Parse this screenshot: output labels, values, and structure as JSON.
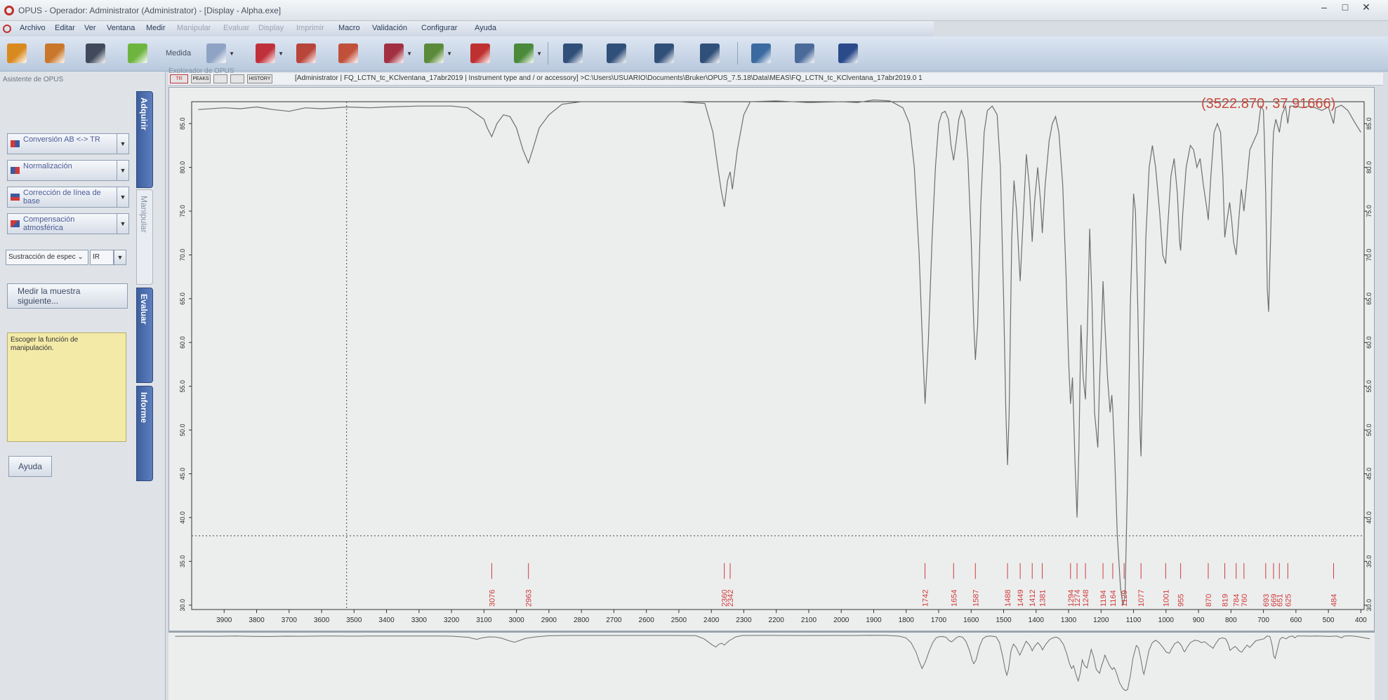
{
  "window": {
    "title": "OPUS - Operador: Administrator  (Administrator) - [Display - Alpha.exe]",
    "buttons": {
      "minimize": "–",
      "maximize": "□",
      "close": "✕"
    }
  },
  "menu": [
    {
      "label": "Archivo",
      "enabled": true
    },
    {
      "label": "Editar",
      "enabled": true
    },
    {
      "label": "Ver",
      "enabled": true
    },
    {
      "label": "Ventana",
      "enabled": true
    },
    {
      "label": "Medir",
      "enabled": true
    },
    {
      "label": "Manipular",
      "enabled": false
    },
    {
      "label": "Evaluar",
      "enabled": false
    },
    {
      "label": "Display",
      "enabled": false
    },
    {
      "label": "Imprimir",
      "enabled": false
    },
    {
      "label": "Macro",
      "enabled": true
    },
    {
      "label": "Validación",
      "enabled": true
    },
    {
      "label": "Configurar",
      "enabled": true
    },
    {
      "label": "Ayuda",
      "enabled": true
    }
  ],
  "toolbar": {
    "medida_label": "Medida",
    "buttons": [
      {
        "icon": "open-folder-icon",
        "color": "#d98a1f"
      },
      {
        "icon": "open-folder-alt-icon",
        "color": "#c9772a"
      },
      {
        "icon": "save-disk-icon",
        "color": "#404a5a"
      },
      {
        "icon": "measure-bulb-icon",
        "color": "#6eb53f"
      },
      {
        "icon": "measure-spectrum-icon",
        "color": "#8fa3c4"
      },
      {
        "icon": "peak-pick-icon",
        "color": "#c0303a"
      },
      {
        "icon": "check-doc-icon",
        "color": "#b8443a"
      },
      {
        "icon": "add-doc-icon",
        "color": "#c0503a"
      },
      {
        "icon": "zoom-icon",
        "color": "#a23042"
      },
      {
        "icon": "spectrum-check-icon",
        "color": "#5a8a3a"
      },
      {
        "icon": "add-report-icon",
        "color": "#bf3030"
      },
      {
        "icon": "validate-icon",
        "color": "#4a8a3a"
      },
      {
        "icon": "spectrum-window-icon",
        "color": "#30507a"
      },
      {
        "icon": "peak-window-icon",
        "color": "#30507a"
      },
      {
        "icon": "axis-arrow-icon",
        "color": "#30507a"
      },
      {
        "icon": "table-window-icon",
        "color": "#30507a"
      },
      {
        "icon": "report-check-icon",
        "color": "#3a6aa0"
      },
      {
        "icon": "print-icon",
        "color": "#4a6a9a"
      },
      {
        "icon": "tools-bag-icon",
        "color": "#2a4a8a"
      }
    ]
  },
  "assistant": {
    "header": "Asistente de OPUS",
    "functions": [
      {
        "label": "Conversión AB <-> TR",
        "icon": "ab-tr-icon"
      },
      {
        "label": "Normalización",
        "icon": "normalize-icon"
      },
      {
        "label": "Corrección de línea de base",
        "icon": "baseline-icon"
      },
      {
        "label": "Compensación atmosférica",
        "icon": "atmospheric-icon"
      }
    ],
    "subtraction_combo": "Sustracción de espec",
    "ir_combo": "IR",
    "next_sample": "Medir la muestra siguiente...",
    "hint": "Escoger la función de manipulación.",
    "help": "Ayuda"
  },
  "tabs": [
    {
      "label": "Adquirir",
      "active": false
    },
    {
      "label": "Manipular",
      "active": true
    },
    {
      "label": "Evaluar",
      "active": false
    },
    {
      "label": "Informe",
      "active": false
    }
  ],
  "explorer": {
    "label": "Explorador de OPUS",
    "mini_labels": [
      "TR",
      "PEAKS",
      "",
      "",
      "HISTORY"
    ],
    "path": "[Administrator | FQ_LCTN_tc_KClventana_17abr2019 | Instrument type and / or accessory] >C:\\Users\\USUARIO\\Documents\\Bruker\\OPUS_7.5.18\\Data\\MEAS\\FQ_LCTN_tc_KClventana_17abr2019.0  1"
  },
  "plot": {
    "coord_readout": "(3522.870, 37.91666)",
    "colors": {
      "spectrum": "#6e6e6e",
      "peak_label": "#d23a3a",
      "axis_text": "#2a2a2a",
      "readout": "#c84a3a"
    }
  },
  "chart_data": {
    "type": "line",
    "title": "",
    "xlabel": "",
    "ylabel": "",
    "xlim": [
      4000,
      390
    ],
    "x_reversed": true,
    "ylim": [
      29.5,
      87.5
    ],
    "x_ticks": [
      3900,
      3800,
      3700,
      3600,
      3500,
      3400,
      3300,
      3200,
      3100,
      3000,
      2900,
      2800,
      2700,
      2600,
      2500,
      2400,
      2300,
      2200,
      2100,
      2000,
      1900,
      1800,
      1700,
      1600,
      1500,
      1400,
      1300,
      1200,
      1100,
      1000,
      900,
      800,
      700,
      600,
      500,
      400
    ],
    "y_ticks": [
      "30.0",
      "35.0",
      "40.0",
      "45.0",
      "50.0",
      "55.0",
      "60.0",
      "65.0",
      "70.0",
      "75.0",
      "80.0",
      "85.0"
    ],
    "grid": false,
    "cursor": {
      "x": 3522.87,
      "y": 37.91666
    },
    "series": [
      {
        "points": [
          [
            3980,
            86.6
          ],
          [
            3900,
            86.8
          ],
          [
            3850,
            86.7
          ],
          [
            3800,
            86.9
          ],
          [
            3750,
            86.6
          ],
          [
            3700,
            86.4
          ],
          [
            3650,
            86.8
          ],
          [
            3600,
            86.7
          ],
          [
            3522,
            86.9
          ],
          [
            3450,
            86.8
          ],
          [
            3400,
            86.9
          ],
          [
            3300,
            87.0
          ],
          [
            3200,
            87.0
          ],
          [
            3150,
            86.8
          ],
          [
            3100,
            85.5
          ],
          [
            3090,
            84.5
          ],
          [
            3076,
            83.5
          ],
          [
            3060,
            85.0
          ],
          [
            3040,
            86.0
          ],
          [
            3020,
            85.8
          ],
          [
            3000,
            84.5
          ],
          [
            2980,
            82.0
          ],
          [
            2963,
            80.5
          ],
          [
            2950,
            82.0
          ],
          [
            2930,
            84.5
          ],
          [
            2900,
            86.0
          ],
          [
            2860,
            87.2
          ],
          [
            2800,
            87.5
          ],
          [
            2700,
            87.5
          ],
          [
            2600,
            87.5
          ],
          [
            2500,
            87.5
          ],
          [
            2420,
            87.3
          ],
          [
            2395,
            84.0
          ],
          [
            2380,
            80.0
          ],
          [
            2370,
            77.5
          ],
          [
            2360,
            75.5
          ],
          [
            2355,
            77.0
          ],
          [
            2350,
            78.5
          ],
          [
            2342,
            79.5
          ],
          [
            2335,
            77.5
          ],
          [
            2320,
            82.0
          ],
          [
            2300,
            86.0
          ],
          [
            2280,
            87.5
          ],
          [
            2200,
            87.6
          ],
          [
            2100,
            87.4
          ],
          [
            2000,
            87.5
          ],
          [
            1950,
            87.4
          ],
          [
            1900,
            87.7
          ],
          [
            1850,
            87.6
          ],
          [
            1810,
            86.8
          ],
          [
            1790,
            85.0
          ],
          [
            1775,
            80.0
          ],
          [
            1760,
            70.0
          ],
          [
            1750,
            60.0
          ],
          [
            1742,
            53.0
          ],
          [
            1732,
            60.0
          ],
          [
            1720,
            72.0
          ],
          [
            1710,
            80.0
          ],
          [
            1700,
            85.0
          ],
          [
            1690,
            86.2
          ],
          [
            1680,
            86.4
          ],
          [
            1670,
            85.5
          ],
          [
            1662,
            82.5
          ],
          [
            1654,
            80.8
          ],
          [
            1646,
            83.0
          ],
          [
            1638,
            85.5
          ],
          [
            1630,
            86.5
          ],
          [
            1620,
            85.5
          ],
          [
            1610,
            81.0
          ],
          [
            1600,
            72.0
          ],
          [
            1592,
            62.0
          ],
          [
            1587,
            58.0
          ],
          [
            1580,
            62.0
          ],
          [
            1570,
            76.0
          ],
          [
            1560,
            84.0
          ],
          [
            1550,
            86.5
          ],
          [
            1535,
            87.0
          ],
          [
            1520,
            86.0
          ],
          [
            1510,
            80.0
          ],
          [
            1500,
            65.0
          ],
          [
            1493,
            52.0
          ],
          [
            1488,
            46.0
          ],
          [
            1483,
            52.0
          ],
          [
            1475,
            72.0
          ],
          [
            1468,
            78.5
          ],
          [
            1460,
            75.0
          ],
          [
            1452,
            69.0
          ],
          [
            1449,
            67.0
          ],
          [
            1440,
            74.0
          ],
          [
            1430,
            81.5
          ],
          [
            1420,
            77.5
          ],
          [
            1415,
            74.0
          ],
          [
            1412,
            71.5
          ],
          [
            1405,
            76.0
          ],
          [
            1395,
            80.0
          ],
          [
            1386,
            76.0
          ],
          [
            1381,
            72.5
          ],
          [
            1372,
            78.0
          ],
          [
            1360,
            83.0
          ],
          [
            1350,
            85.0
          ],
          [
            1340,
            85.8
          ],
          [
            1330,
            84.0
          ],
          [
            1318,
            78.0
          ],
          [
            1308,
            68.0
          ],
          [
            1300,
            58.0
          ],
          [
            1294,
            53.0
          ],
          [
            1288,
            56.0
          ],
          [
            1280,
            46.0
          ],
          [
            1274,
            40.0
          ],
          [
            1268,
            48.0
          ],
          [
            1262,
            62.0
          ],
          [
            1255,
            56.0
          ],
          [
            1248,
            53.5
          ],
          [
            1242,
            62.0
          ],
          [
            1235,
            73.0
          ],
          [
            1228,
            65.0
          ],
          [
            1220,
            52.0
          ],
          [
            1210,
            48.0
          ],
          [
            1205,
            55.0
          ],
          [
            1198,
            62.0
          ],
          [
            1194,
            67.0
          ],
          [
            1188,
            62.0
          ],
          [
            1180,
            56.0
          ],
          [
            1172,
            52.0
          ],
          [
            1167,
            54.0
          ],
          [
            1164,
            52.5
          ],
          [
            1158,
            47.0
          ],
          [
            1150,
            38.0
          ],
          [
            1140,
            32.0
          ],
          [
            1133,
            30.0
          ],
          [
            1126,
            31.0
          ],
          [
            1118,
            45.0
          ],
          [
            1110,
            64.0
          ],
          [
            1100,
            77.0
          ],
          [
            1094,
            75.0
          ],
          [
            1087,
            64.0
          ],
          [
            1080,
            50.0
          ],
          [
            1077,
            47.0
          ],
          [
            1072,
            55.0
          ],
          [
            1062,
            72.0
          ],
          [
            1052,
            80.0
          ],
          [
            1042,
            82.5
          ],
          [
            1032,
            80.0
          ],
          [
            1020,
            75.0
          ],
          [
            1010,
            70.0
          ],
          [
            1001,
            69.0
          ],
          [
            995,
            73.0
          ],
          [
            985,
            79.0
          ],
          [
            975,
            81.0
          ],
          [
            965,
            77.0
          ],
          [
            958,
            71.5
          ],
          [
            955,
            70.5
          ],
          [
            948,
            75.0
          ],
          [
            938,
            80.0
          ],
          [
            925,
            82.5
          ],
          [
            915,
            82.0
          ],
          [
            905,
            80.0
          ],
          [
            895,
            81.0
          ],
          [
            885,
            78.0
          ],
          [
            875,
            75.5
          ],
          [
            870,
            74.0
          ],
          [
            862,
            79.0
          ],
          [
            852,
            84.0
          ],
          [
            842,
            85.0
          ],
          [
            832,
            84.0
          ],
          [
            825,
            79.0
          ],
          [
            819,
            72.0
          ],
          [
            812,
            74.0
          ],
          [
            804,
            76.0
          ],
          [
            798,
            74.0
          ],
          [
            792,
            71.5
          ],
          [
            784,
            70.0
          ],
          [
            776,
            74.0
          ],
          [
            768,
            77.5
          ],
          [
            760,
            75.0
          ],
          [
            752,
            78.0
          ],
          [
            742,
            82.0
          ],
          [
            730,
            83.0
          ],
          [
            718,
            84.0
          ],
          [
            708,
            87.0
          ],
          [
            700,
            86.5
          ],
          [
            697,
            83.0
          ],
          [
            693,
            77.0
          ],
          [
            688,
            66.0
          ],
          [
            684,
            63.5
          ],
          [
            678,
            72.0
          ],
          [
            672,
            81.0
          ],
          [
            669,
            84.0
          ],
          [
            662,
            85.5
          ],
          [
            651,
            84.0
          ],
          [
            643,
            86.0
          ],
          [
            632,
            87.0
          ],
          [
            625,
            85.0
          ],
          [
            618,
            87.0
          ],
          [
            600,
            87.0
          ],
          [
            580,
            86.8
          ],
          [
            560,
            87.0
          ],
          [
            540,
            86.8
          ],
          [
            520,
            86.5
          ],
          [
            500,
            86.9
          ],
          [
            484,
            85.0
          ],
          [
            478,
            86.8
          ],
          [
            460,
            87.1
          ],
          [
            440,
            86.5
          ],
          [
            420,
            85.2
          ],
          [
            400,
            84.0
          ]
        ]
      }
    ],
    "peak_labels": [
      "3076",
      "2963",
      "2360",
      "2342",
      "1742",
      "1654",
      "1587",
      "1488",
      "1449",
      "1412",
      "1381",
      "1294",
      "1274",
      "1248",
      "1194",
      "1164",
      "1129",
      "1077",
      "1001",
      "955",
      "870",
      "819",
      "784",
      "760",
      "693",
      "669",
      "651",
      "625",
      "484"
    ],
    "peak_positions": [
      3076,
      2963,
      2360,
      2342,
      1742,
      1654,
      1587,
      1488,
      1449,
      1412,
      1381,
      1294,
      1274,
      1248,
      1194,
      1164,
      1129,
      1077,
      1001,
      955,
      870,
      819,
      784,
      760,
      693,
      669,
      651,
      625,
      484
    ]
  }
}
